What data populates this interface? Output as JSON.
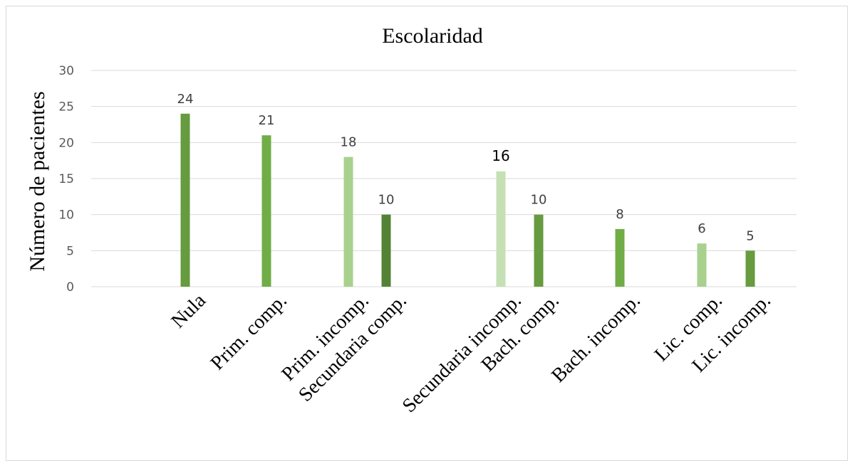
{
  "chart_data": {
    "type": "bar",
    "title": "Escolaridad",
    "xlabel": "",
    "ylabel": "Número de pacientes",
    "ylim": [
      0,
      30
    ],
    "yticks": [
      "0",
      "5",
      "10",
      "15",
      "20",
      "25",
      "30"
    ],
    "grid": true,
    "legend": "none",
    "categories": [
      "Nula",
      "Prim. comp.",
      "Prim.  incomp.",
      "Secundaria comp.",
      "Secundaria incomp.",
      "Bach. comp.",
      "Bach. incomp.",
      "Lic. comp.",
      "Lic. incomp."
    ],
    "values": [
      24,
      21,
      18,
      10,
      16,
      10,
      8,
      6,
      5
    ],
    "value_labels": [
      "24",
      "21",
      "18",
      "10",
      "16",
      "10",
      "8",
      "6",
      "5"
    ],
    "colors": [
      "#669b3f",
      "#70ad47",
      "#a9d18e",
      "#548235",
      "#c5e0b4",
      "#669b3f",
      "#70ad47",
      "#a9d18e",
      "#669b3f"
    ]
  }
}
